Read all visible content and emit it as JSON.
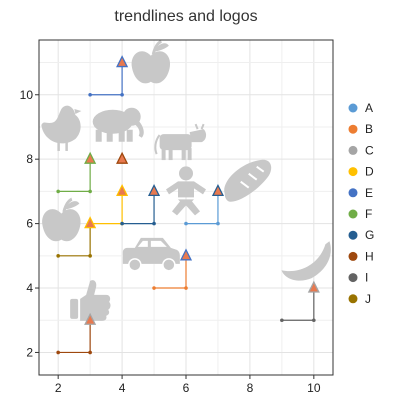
{
  "chart_data": {
    "type": "scatter",
    "title": "trendlines and logos",
    "xlabel": "",
    "ylabel": "",
    "xlim": [
      1.4,
      10.6
    ],
    "ylim": [
      1.3,
      11.7
    ],
    "x_ticks": [
      2,
      4,
      6,
      8,
      10
    ],
    "y_ticks": [
      2,
      4,
      6,
      8,
      10
    ],
    "grid": true,
    "legend_position": "right",
    "series": [
      {
        "name": "A",
        "color": "#5b9bd5",
        "points": [
          [
            6,
            6
          ],
          [
            7,
            6
          ],
          [
            7,
            7
          ]
        ]
      },
      {
        "name": "B",
        "color": "#ed7d31",
        "points": [
          [
            5,
            4
          ],
          [
            6,
            4
          ],
          [
            6,
            5
          ]
        ]
      },
      {
        "name": "C",
        "color": "#a5a5a5",
        "points": []
      },
      {
        "name": "D",
        "color": "#ffc000",
        "points": [
          [
            3,
            6
          ],
          [
            4,
            6
          ],
          [
            4,
            7
          ]
        ]
      },
      {
        "name": "E",
        "color": "#4472c4",
        "points": [
          [
            3,
            10
          ],
          [
            4,
            10
          ],
          [
            4,
            11
          ]
        ]
      },
      {
        "name": "F",
        "color": "#70ad47",
        "points": [
          [
            2,
            7
          ],
          [
            3,
            7
          ],
          [
            3,
            8
          ]
        ]
      },
      {
        "name": "G",
        "color": "#255e91",
        "points": [
          [
            4,
            6
          ],
          [
            5,
            6
          ],
          [
            5,
            7
          ]
        ]
      },
      {
        "name": "H",
        "color": "#9e480e",
        "points": [
          [
            2,
            2
          ],
          [
            3,
            2
          ],
          [
            3,
            3
          ]
        ]
      },
      {
        "name": "I",
        "color": "#636363",
        "points": [
          [
            9,
            3
          ],
          [
            10,
            3
          ],
          [
            10,
            4
          ]
        ]
      },
      {
        "name": "J",
        "color": "#997300",
        "points": [
          [
            2,
            5
          ],
          [
            3,
            5
          ],
          [
            3,
            6
          ]
        ]
      }
    ],
    "markers": [
      {
        "x": 4,
        "y": 11,
        "edge": "#4472c4"
      },
      {
        "x": 3,
        "y": 8,
        "edge": "#70ad47"
      },
      {
        "x": 4,
        "y": 8,
        "edge": "#9e480e"
      },
      {
        "x": 4,
        "y": 7,
        "edge": "#ffc000"
      },
      {
        "x": 5,
        "y": 7,
        "edge": "#255e91"
      },
      {
        "x": 7,
        "y": 7,
        "edge": "#255e91"
      },
      {
        "x": 3,
        "y": 6,
        "edge": "#ffc000"
      },
      {
        "x": 6,
        "y": 5,
        "edge": "#4472c4"
      },
      {
        "x": 10,
        "y": 4,
        "edge": "#a5a5a5"
      },
      {
        "x": 3,
        "y": 3,
        "edge": "#a5a5a5"
      }
    ],
    "logos": [
      {
        "icon": "apple-icon",
        "x": 4.9,
        "y": 10.9
      },
      {
        "icon": "chicken-icon",
        "x": 2.1,
        "y": 9.0
      },
      {
        "icon": "elephant-icon",
        "x": 3.8,
        "y": 9.1
      },
      {
        "icon": "cow-icon",
        "x": 5.8,
        "y": 8.5
      },
      {
        "icon": "person-icon",
        "x": 6.0,
        "y": 7.0
      },
      {
        "icon": "bread-icon",
        "x": 7.9,
        "y": 7.3
      },
      {
        "icon": "apple-icon",
        "x": 2.1,
        "y": 6.0
      },
      {
        "icon": "car-icon",
        "x": 4.9,
        "y": 5.0
      },
      {
        "icon": "banana-icon",
        "x": 9.8,
        "y": 4.8
      },
      {
        "icon": "thumbs-up-icon",
        "x": 3.0,
        "y": 3.6
      }
    ]
  }
}
